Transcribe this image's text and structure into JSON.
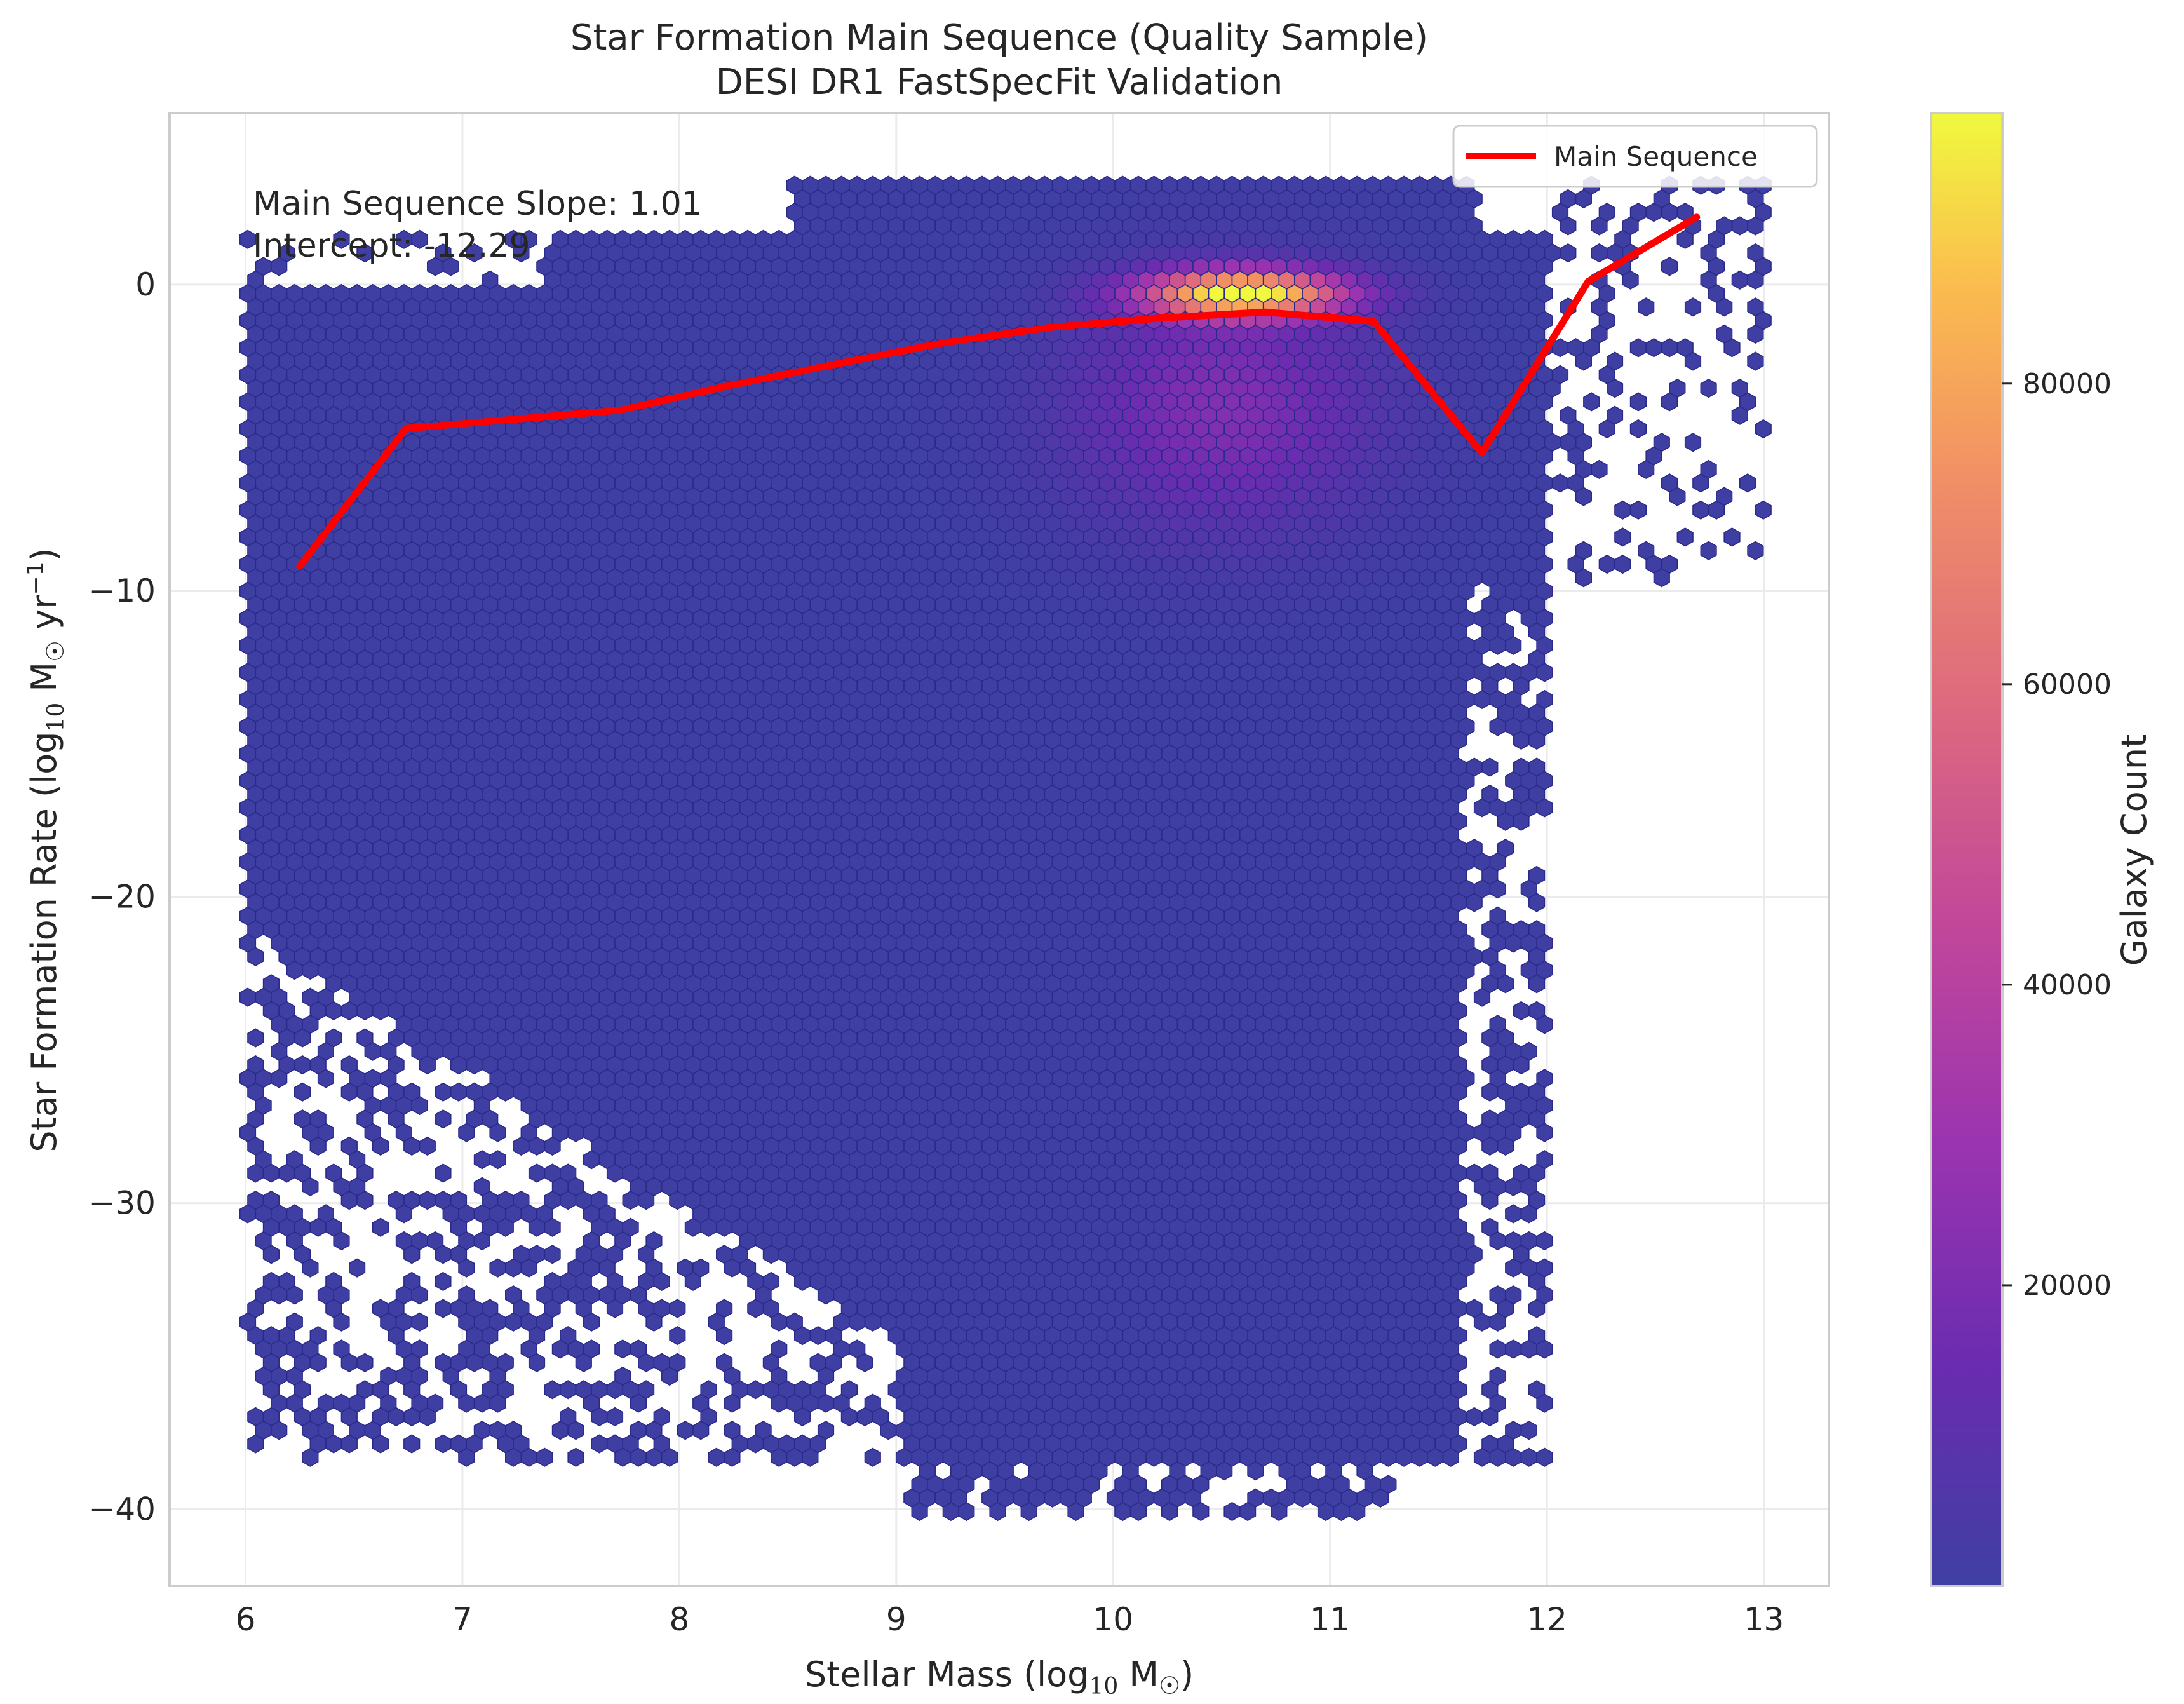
{
  "chart_data": {
    "type": "hexbin",
    "title": "Star Formation Main Sequence (Quality Sample)",
    "subtitle": "DESI DR1 FastSpecFit Validation",
    "xlabel_main": "Stellar Mass (log",
    "xlabel_sub": "10",
    "xlabel_tail": " M",
    "xlabel_close": ")",
    "ylabel_main": "Star Formation Rate (log",
    "ylabel_sub": "10",
    "ylabel_mid": " M",
    "ylabel_unit": " yr",
    "ylabel_sup": "−1",
    "ylabel_close": ")",
    "sun_symbol": "☉",
    "xlim": [
      5.65,
      13.3
    ],
    "ylim": [
      -42.5,
      5.6
    ],
    "x_ticks": [
      6,
      7,
      8,
      9,
      10,
      11,
      12,
      13
    ],
    "x_tick_labels": [
      "6",
      "7",
      "8",
      "9",
      "10",
      "11",
      "12",
      "13"
    ],
    "y_ticks": [
      0,
      -10,
      -20,
      -30,
      -40
    ],
    "y_tick_labels": [
      "0",
      "−10",
      "−20",
      "−30",
      "−40"
    ],
    "grid": true,
    "legend": {
      "position": "top-right",
      "entries": [
        {
          "label": "Main Sequence",
          "color": "#ff0000"
        }
      ]
    },
    "annotation": {
      "line1": "Main Sequence Slope: 1.01",
      "line2": "Intercept: -12.29"
    },
    "colorbar": {
      "label": "Galaxy Count",
      "range": [
        0,
        98000
      ],
      "ticks": [
        20000,
        40000,
        60000,
        80000
      ],
      "tick_labels": [
        "20000",
        "40000",
        "60000",
        "80000"
      ],
      "colormap": "plasma"
    },
    "series": [
      {
        "name": "Main Sequence",
        "color": "#ff0000",
        "x": [
          6.25,
          6.74,
          7.24,
          7.73,
          8.23,
          8.72,
          9.22,
          9.71,
          10.21,
          10.7,
          11.2,
          11.7,
          12.19,
          12.69
        ],
        "y": [
          -9.2,
          -4.7,
          -4.4,
          -4.1,
          -3.3,
          -2.6,
          -1.9,
          -1.4,
          -1.1,
          -0.9,
          -1.2,
          -5.5,
          0.1,
          2.2
        ]
      }
    ],
    "density": {
      "x_range": [
        6.0,
        13.0
      ],
      "y_range": [
        -40.5,
        3.5
      ],
      "peak_x": 10.6,
      "peak_y": -0.3,
      "peak_count": 98000
    }
  }
}
